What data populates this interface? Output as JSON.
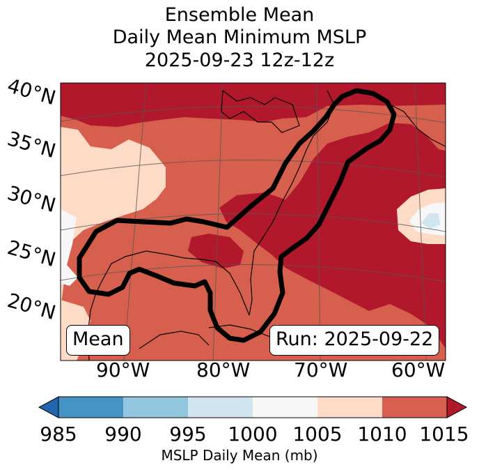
{
  "title": {
    "line1": "Ensemble Mean",
    "line2": "Daily Mean Minimum MSLP",
    "line3": "2025-09-23 12z-12z"
  },
  "map": {
    "lat_labels": [
      "40°N",
      "35°N",
      "30°N",
      "25°N",
      "20°N"
    ],
    "lon_labels": [
      "90°W",
      "80°W",
      "70°W",
      "60°W"
    ],
    "mean_badge": "Mean",
    "run_badge": "Run: 2025-09-22",
    "region_colors": {
      "ge_1015": "#b2182b",
      "1010_1015": "#d6604d",
      "1005_1010": "#fddbc7",
      "1000_1005": "#f7f7f7",
      "995_1000": "#d1e5f0"
    }
  },
  "colorbar": {
    "ticks": [
      "985",
      "990",
      "995",
      "1000",
      "1005",
      "1010",
      "1015"
    ],
    "label": "MSLP Daily Mean (mb)",
    "under_color": "#2166ac",
    "over_color": "#b2182b",
    "bins": [
      {
        "range": "985-990",
        "color": "#4393c3"
      },
      {
        "range": "990-995",
        "color": "#92c5de"
      },
      {
        "range": "995-1000",
        "color": "#d1e5f0"
      },
      {
        "range": "1000-1005",
        "color": "#f7f7f7"
      },
      {
        "range": "1005-1010",
        "color": "#fddbc7"
      },
      {
        "range": "1010-1015",
        "color": "#d6604d"
      }
    ]
  }
}
